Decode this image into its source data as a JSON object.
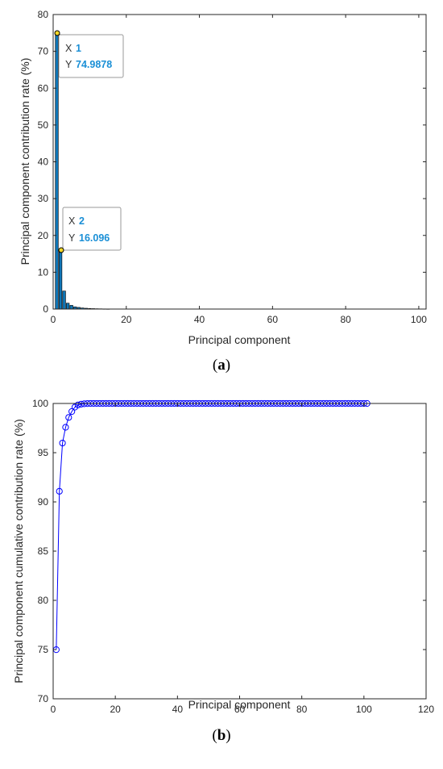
{
  "colors": {
    "bar_fill": "#0f75b5",
    "bar_edge": "#000000",
    "line": "#0000ff",
    "tooltip_value": "#1a8fd6",
    "datatip_marker": "#f2d729"
  },
  "chart_data": [
    {
      "type": "bar",
      "caption_letter": "a",
      "xlabel": "Principal component",
      "ylabel": "Principal component contribution rate (%)",
      "xlim": [
        0,
        102
      ],
      "ylim": [
        0,
        80
      ],
      "xticks": [
        "0",
        "20",
        "40",
        "60",
        "80",
        "100"
      ],
      "yticks": [
        "0",
        "10",
        "20",
        "30",
        "40",
        "50",
        "60",
        "70",
        "80"
      ],
      "x": [
        1,
        2,
        3,
        4,
        5,
        6,
        7,
        8,
        9,
        10,
        11,
        12,
        13,
        14,
        15
      ],
      "values": [
        74.9878,
        16.096,
        4.9,
        1.6,
        1.0,
        0.6,
        0.45,
        0.3,
        0.22,
        0.16,
        0.12,
        0.09,
        0.07,
        0.05,
        0.04
      ],
      "grid": false,
      "datatips": [
        {
          "x_key": "X",
          "x_val": "1",
          "y_key": "Y",
          "y_val": "74.9878"
        },
        {
          "x_key": "X",
          "x_val": "2",
          "y_key": "Y",
          "y_val": "16.096"
        }
      ]
    },
    {
      "type": "line",
      "caption_letter": "b",
      "xlabel": "Principal component",
      "ylabel": "Principal component cumulative contribution rate (%)",
      "xlim": [
        0,
        120
      ],
      "ylim": [
        70,
        100
      ],
      "xticks": [
        "0",
        "20",
        "40",
        "60",
        "80",
        "100",
        "120"
      ],
      "yticks": [
        "70",
        "75",
        "80",
        "85",
        "90",
        "95",
        "100"
      ],
      "x_start": 1,
      "x_end": 101,
      "values_head": [
        74.99,
        91.08,
        95.98,
        97.58,
        98.58,
        99.18,
        99.63,
        99.85,
        99.93,
        99.97,
        99.99
      ],
      "tail_value": 100,
      "marker": "circle",
      "grid": false
    }
  ]
}
